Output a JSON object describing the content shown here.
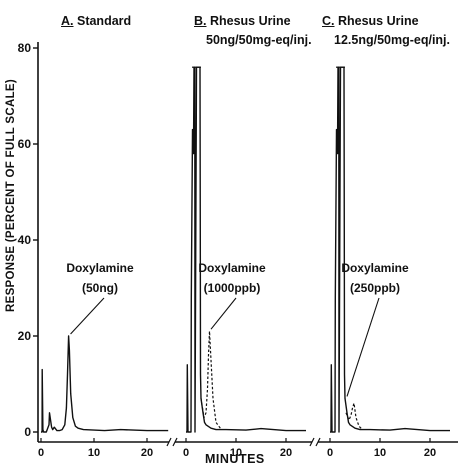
{
  "chart_data": {
    "type": "line",
    "ylabel": "RESPONSE (PERCENT OF FULL SCALE)",
    "xlabel": "MINUTES",
    "ylim": [
      0,
      80
    ],
    "yticks": [
      0,
      20,
      40,
      60,
      80
    ],
    "grid": false,
    "panels": [
      {
        "id": "A",
        "letter": "A.",
        "title": "Standard",
        "subtitle": "",
        "xticks": [
          0,
          10,
          20
        ],
        "xlim": [
          0,
          24
        ],
        "annotation_name": "Doxylamine",
        "annotation_amount": "(50ng)",
        "annotation_target": [
          5.2,
          20
        ],
        "series": [
          {
            "style": "solid",
            "x": [
              0,
              0.2,
              0.22,
              0.35,
              0.5,
              1.0,
              1.5,
              1.6,
              2.0,
              2.2,
              2.5,
              3.0,
              3.5,
              4.0,
              4.5,
              4.8,
              5.0,
              5.2,
              5.35,
              5.6,
              6.0,
              6.5,
              7,
              8,
              10,
              12,
              15,
              20,
              24
            ],
            "y": [
              0,
              0,
              13,
              0.5,
              0,
              0,
              1.5,
              4,
              1.0,
              0.5,
              1.0,
              0.3,
              0.3,
              0.5,
              1.5,
              5,
              12,
              20,
              17,
              8,
              3,
              1.2,
              0.8,
              0.5,
              0.4,
              0.3,
              0.5,
              0.3,
              0.3
            ]
          }
        ]
      },
      {
        "id": "B",
        "letter": "B.",
        "title": "Rhesus Urine",
        "subtitle": "50ng/50mg-eq/inj.",
        "xticks": [
          0,
          10,
          20
        ],
        "xlim": [
          0,
          24
        ],
        "annotation_name": "Doxylamine",
        "annotation_amount": "(1000ppb)",
        "annotation_target": [
          4.6,
          21
        ],
        "series": [
          {
            "style": "solid",
            "x": [
              0,
              0.2,
              0.25,
              0.4,
              1.0,
              1.05,
              1.3,
              1.5,
              1.6,
              1.75,
              1.8,
              2.1,
              2.25,
              2.6,
              2.8,
              2.85,
              2.9,
              3.0,
              3.4,
              3.7,
              4.0,
              5,
              6,
              8,
              12,
              15,
              20,
              24
            ],
            "y": [
              0,
              0,
              14,
              0,
              0,
              28,
              63,
              58,
              76,
              76,
              0,
              76,
              76,
              76,
              76,
              40,
              12,
              7,
              4,
              2,
              1.5,
              0.8,
              0.5,
              0.5,
              0.4,
              0.7,
              0.3,
              0.3
            ]
          },
          {
            "style": "dashed",
            "x": [
              3.0,
              3.6,
              4.0,
              4.3,
              4.5,
              4.7,
              5.0,
              5.4,
              6.0,
              7.0
            ],
            "y": [
              7,
              3,
              4,
              9,
              16,
              21,
              15,
              7,
              2,
              0.6
            ]
          }
        ]
      },
      {
        "id": "C",
        "letter": "C.",
        "title": "Rhesus Urine",
        "subtitle": "12.5ng/50mg-eq/inj.",
        "xticks": [
          0,
          10,
          20
        ],
        "xlim": [
          0,
          24
        ],
        "annotation_name": "Doxylamine",
        "annotation_amount": "(250ppb)",
        "annotation_target": [
          3.0,
          7
        ],
        "series": [
          {
            "style": "solid",
            "x": [
              0,
              0.2,
              0.25,
              0.4,
              1.0,
              1.05,
              1.3,
              1.5,
              1.6,
              1.75,
              1.8,
              2.1,
              2.25,
              2.6,
              2.8,
              2.85,
              2.9,
              3.0,
              3.4,
              3.7,
              4.0,
              5,
              6,
              8,
              12,
              15,
              20,
              24
            ],
            "y": [
              0,
              0,
              14,
              0,
              0,
              28,
              63,
              58,
              76,
              76,
              0,
              76,
              76,
              76,
              76,
              40,
              12,
              7,
              4,
              2,
              1.5,
              0.8,
              0.5,
              0.5,
              0.4,
              0.7,
              0.3,
              0.3
            ]
          },
          {
            "style": "dashed",
            "x": [
              3.2,
              3.8,
              4.2,
              4.5,
              4.8,
              5.2,
              5.8,
              6.5
            ],
            "y": [
              4,
              2.5,
              3.5,
              5,
              6,
              3,
              1.2,
              0.5
            ]
          }
        ]
      }
    ]
  }
}
